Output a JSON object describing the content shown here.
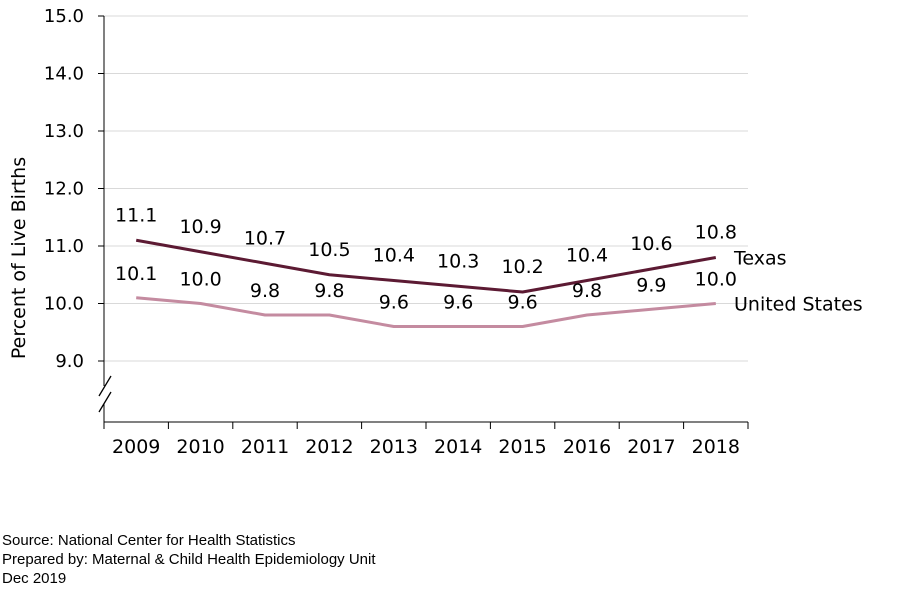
{
  "chart_data": {
    "type": "line",
    "categories": [
      "2009",
      "2010",
      "2011",
      "2012",
      "2013",
      "2014",
      "2015",
      "2016",
      "2017",
      "2018"
    ],
    "series": [
      {
        "name": "Texas",
        "values": [
          11.1,
          10.9,
          10.7,
          10.5,
          10.4,
          10.3,
          10.2,
          10.4,
          10.6,
          10.8
        ],
        "color": "#5c1a33",
        "labels": [
          "11.1",
          "10.9",
          "10.7",
          "10.5",
          "10.4",
          "10.3",
          "10.2",
          "10.4",
          "10.6",
          "10.8"
        ]
      },
      {
        "name": "United States",
        "values": [
          10.1,
          10.0,
          9.8,
          9.8,
          9.6,
          9.6,
          9.6,
          9.8,
          9.9,
          10.0
        ],
        "color": "#c48ba0",
        "labels": [
          "10.1",
          "10.0",
          "9.8",
          "9.8",
          "9.6",
          "9.6",
          "9.6",
          "9.8",
          "9.9",
          "10.0"
        ]
      }
    ],
    "ylabel": "Percent  of Live  Births",
    "xlabel": "",
    "ylim": [
      9.0,
      15.0
    ],
    "y_ticks": [
      "9.0",
      "10.0",
      "11.0",
      "12.0",
      "13.0",
      "14.0",
      "15.0"
    ],
    "axis_break": true,
    "grid": true,
    "legend": "inline-right"
  },
  "footer": {
    "source": "Source: National Center for Health Statistics",
    "prepared": "Prepared by: Maternal & Child Health Epidemiology Unit",
    "date": "Dec 2019"
  }
}
